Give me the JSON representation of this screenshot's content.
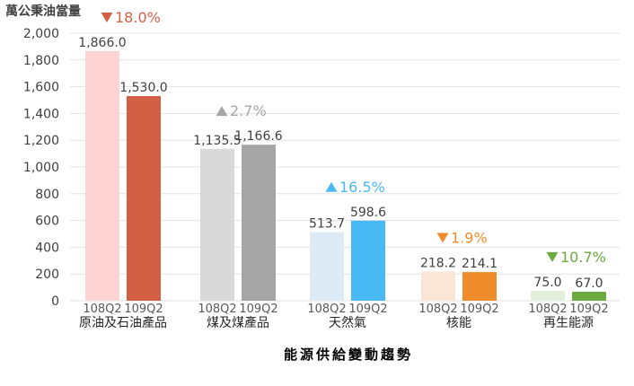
{
  "chart_data": {
    "type": "bar",
    "title": "",
    "ylabel": "萬公秉油當量",
    "caption": "能源供給變動趨勢",
    "ylim": [
      0,
      2000
    ],
    "yticks": [
      "2,000",
      "1,800",
      "1,600",
      "1,400",
      "1,200",
      "1,000",
      "800",
      "600",
      "400",
      "200",
      "0"
    ],
    "periods": [
      "108Q2",
      "109Q2"
    ],
    "groups": [
      {
        "category": "原油及石油產品",
        "values": [
          1866.0,
          1530.0
        ],
        "labels": [
          "1,866.0",
          "1,530.0"
        ],
        "colors": [
          "#FDD3D3",
          "#D35F45"
        ],
        "change": {
          "direction": "down",
          "text": "18.0%",
          "color": "#D35F45"
        }
      },
      {
        "category": "煤及煤產品",
        "values": [
          1135.5,
          1166.6
        ],
        "labels": [
          "1,135.5",
          "1,166.6"
        ],
        "colors": [
          "#D9D9D9",
          "#A6A6A6"
        ],
        "change": {
          "direction": "up",
          "text": "2.7%",
          "color": "#A6A6A6"
        }
      },
      {
        "category": "天然氣",
        "values": [
          513.7,
          598.6
        ],
        "labels": [
          "513.7",
          "598.6"
        ],
        "colors": [
          "#DDEBF7",
          "#48B9F5"
        ],
        "change": {
          "direction": "up",
          "text": "16.5%",
          "color": "#48B9F5"
        }
      },
      {
        "category": "核能",
        "values": [
          218.2,
          214.1
        ],
        "labels": [
          "218.2",
          "214.1"
        ],
        "colors": [
          "#FBE5D6",
          "#EE8C2C"
        ],
        "change": {
          "direction": "down",
          "text": "1.9%",
          "color": "#EE8C2C"
        }
      },
      {
        "category": "再生能源",
        "values": [
          75.0,
          67.0
        ],
        "labels": [
          "75.0",
          "67.0"
        ],
        "colors": [
          "#E2EFDA",
          "#6AAA3F"
        ],
        "change": {
          "direction": "down",
          "text": "10.7%",
          "color": "#6AAA3F"
        }
      }
    ]
  }
}
